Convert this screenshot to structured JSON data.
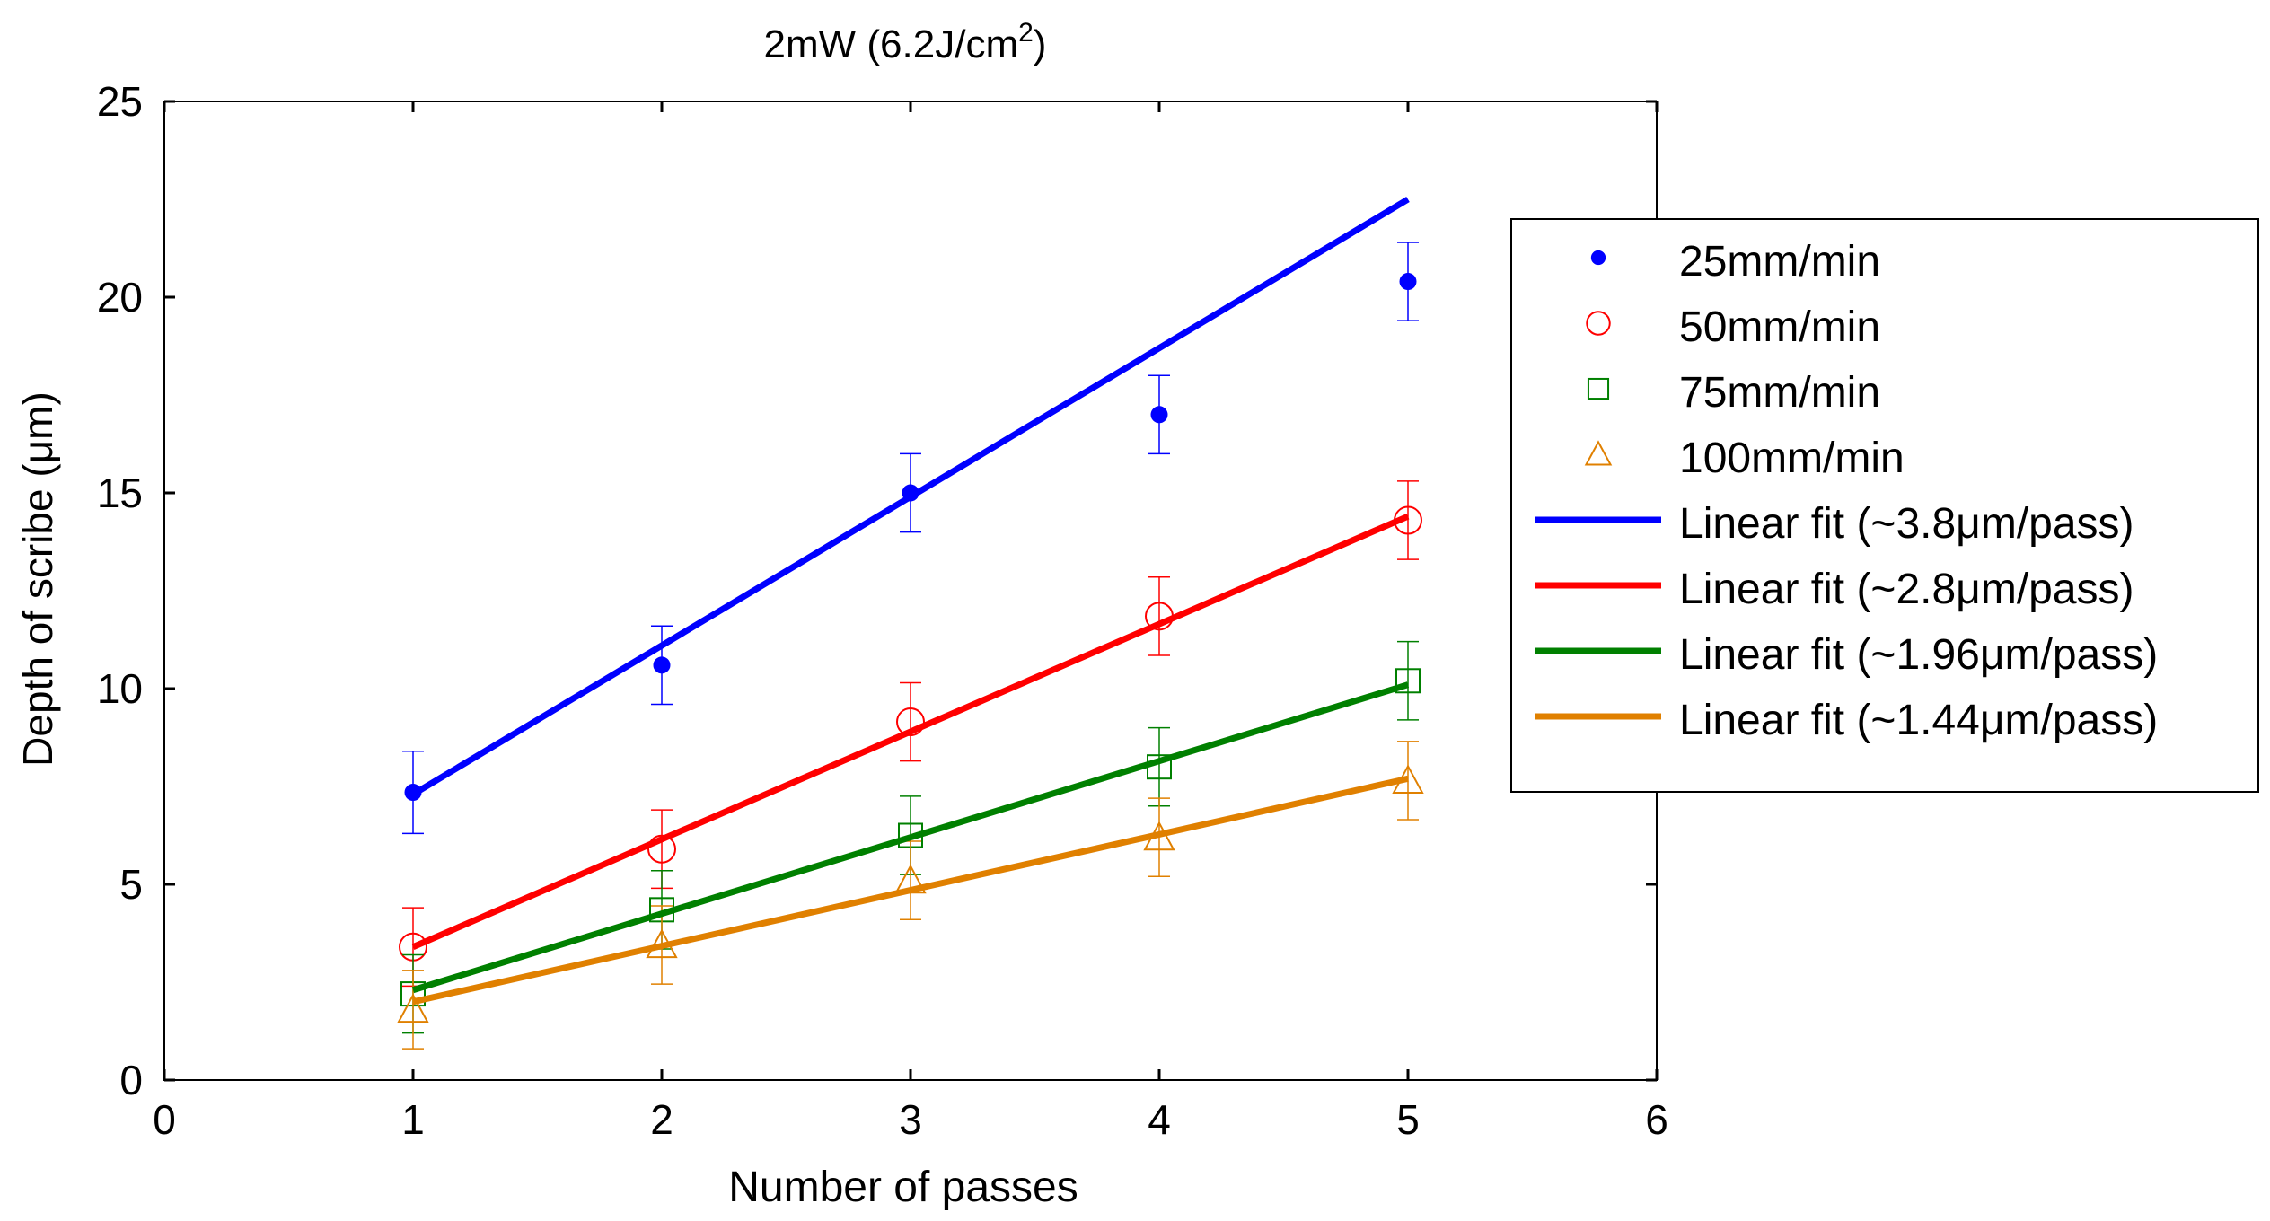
{
  "chart_data": {
    "type": "scatter",
    "title_main": "2mW (6.2J/cm",
    "title_sup": "2",
    "title_close": ")",
    "xlabel": "Number of passes",
    "ylabel": "Depth of scribe (μm)",
    "xlim": [
      0,
      6
    ],
    "ylim": [
      0,
      25
    ],
    "xticks": [
      "0",
      "1",
      "2",
      "3",
      "4",
      "5",
      "6"
    ],
    "yticks": [
      "0",
      "5",
      "10",
      "15",
      "20",
      "25"
    ],
    "x": [
      1,
      2,
      3,
      4,
      5
    ],
    "series": [
      {
        "name": "25mm/min",
        "marker": "dot",
        "color": "#0000ff",
        "values": [
          7.35,
          10.6,
          15.0,
          17.0,
          20.4
        ],
        "errors": [
          1.05,
          1.0,
          1.0,
          1.0,
          1.0
        ]
      },
      {
        "name": "50mm/min",
        "marker": "circle",
        "color": "#ff0000",
        "values": [
          3.4,
          5.9,
          9.15,
          11.85,
          14.3
        ],
        "errors": [
          1.0,
          1.0,
          1.0,
          1.0,
          1.0
        ]
      },
      {
        "name": "75mm/min",
        "marker": "square",
        "color": "#008000",
        "values": [
          2.2,
          4.35,
          6.25,
          8.0,
          10.2
        ],
        "errors": [
          1.0,
          1.0,
          1.0,
          1.0,
          1.0
        ]
      },
      {
        "name": "100mm/min",
        "marker": "triangle",
        "color": "#e08000",
        "values": [
          1.8,
          3.45,
          5.1,
          6.2,
          7.65
        ],
        "errors": [
          1.0,
          1.0,
          1.0,
          1.0,
          1.0
        ]
      }
    ],
    "fits": [
      {
        "name": "Linear fit (~3.8μm/pass)",
        "color": "#0000ff",
        "x": [
          1,
          5
        ],
        "y": [
          7.3,
          22.5
        ]
      },
      {
        "name": "Linear fit (~2.8μm/pass)",
        "color": "#ff0000",
        "x": [
          1,
          5
        ],
        "y": [
          3.4,
          14.4
        ]
      },
      {
        "name": "Linear fit (~1.96μm/pass)",
        "color": "#008000",
        "x": [
          1,
          5
        ],
        "y": [
          2.3,
          10.1
        ]
      },
      {
        "name": "Linear fit (~1.44μm/pass)",
        "color": "#e08000",
        "x": [
          1,
          5
        ],
        "y": [
          2.0,
          7.7
        ]
      }
    ],
    "legend_position": "right"
  }
}
